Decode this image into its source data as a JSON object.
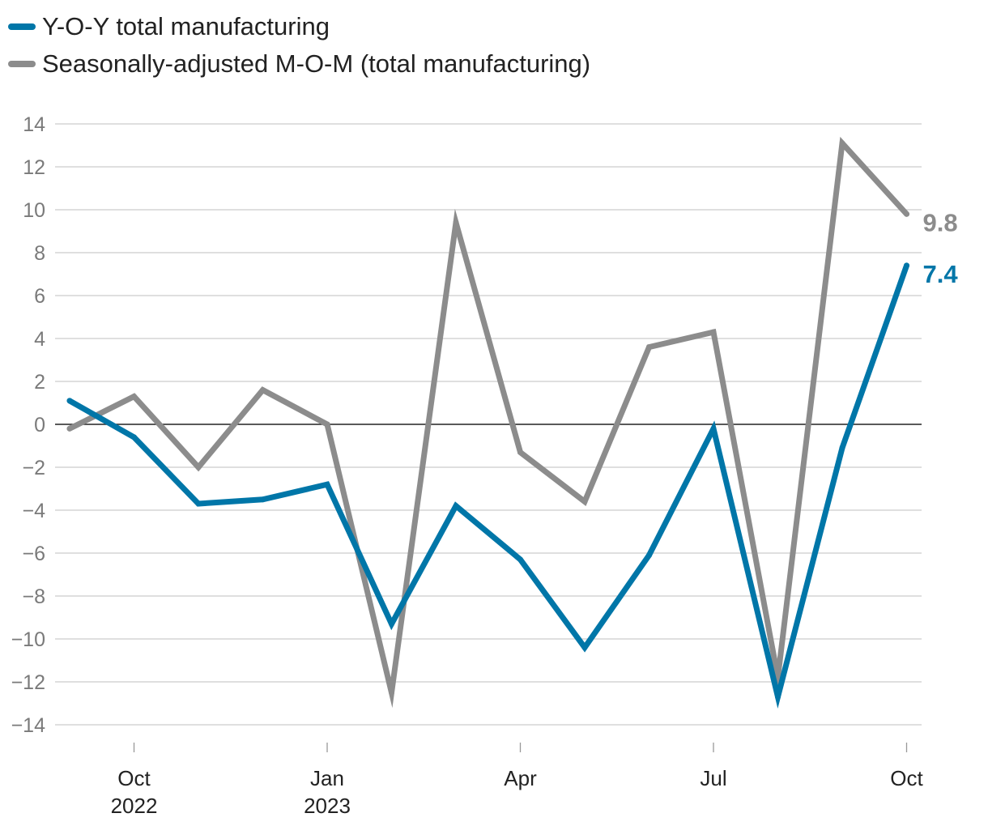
{
  "legend": {
    "items": [
      {
        "label": "Y-O-Y total manufacturing",
        "color": "#0076a8"
      },
      {
        "label": "Seasonally-adjusted M-O-M (total manufacturing)",
        "color": "#8c8c8c"
      }
    ]
  },
  "chart_data": {
    "type": "line",
    "title": "",
    "xlabel": "",
    "ylabel": "",
    "ylim": [
      -14,
      14
    ],
    "y_ticks": [
      14,
      12,
      10,
      8,
      6,
      4,
      2,
      0,
      -2,
      -4,
      -6,
      -8,
      -10,
      -12,
      -14
    ],
    "y_tick_labels": [
      "14",
      "12",
      "10",
      "8",
      "6",
      "4",
      "2",
      "0",
      "−2",
      "−4",
      "−6",
      "−8",
      "−10",
      "−12",
      "−14"
    ],
    "x": [
      "Sep 2022",
      "Oct 2022",
      "Nov 2022",
      "Dec 2022",
      "Jan 2023",
      "Feb 2023",
      "Mar 2023",
      "Apr 2023",
      "May 2023",
      "Jun 2023",
      "Jul 2023",
      "Aug 2023",
      "Sep 2023",
      "Oct 2023"
    ],
    "x_ticks": [
      {
        "index": 1,
        "line1": "Oct",
        "line2": "2022"
      },
      {
        "index": 4,
        "line1": "Jan",
        "line2": "2023"
      },
      {
        "index": 7,
        "line1": "Apr",
        "line2": ""
      },
      {
        "index": 10,
        "line1": "Jul",
        "line2": ""
      },
      {
        "index": 13,
        "line1": "Oct",
        "line2": ""
      }
    ],
    "series": [
      {
        "name": "Seasonally-adjusted M-O-M (total manufacturing)",
        "color": "#8c8c8c",
        "values": [
          -0.2,
          1.3,
          -2.0,
          1.6,
          0.0,
          -12.5,
          9.4,
          -1.3,
          -3.6,
          3.6,
          4.3,
          -11.8,
          13.1,
          9.8
        ],
        "end_label": "9.8"
      },
      {
        "name": "Y-O-Y total manufacturing",
        "color": "#0076a8",
        "values": [
          1.1,
          -0.6,
          -3.7,
          -3.5,
          -2.8,
          -9.3,
          -3.8,
          -6.3,
          -10.4,
          -6.1,
          -0.2,
          -12.7,
          -1.1,
          7.4
        ],
        "end_label": "7.4"
      }
    ],
    "grid": true,
    "legend_position": "top-left"
  }
}
